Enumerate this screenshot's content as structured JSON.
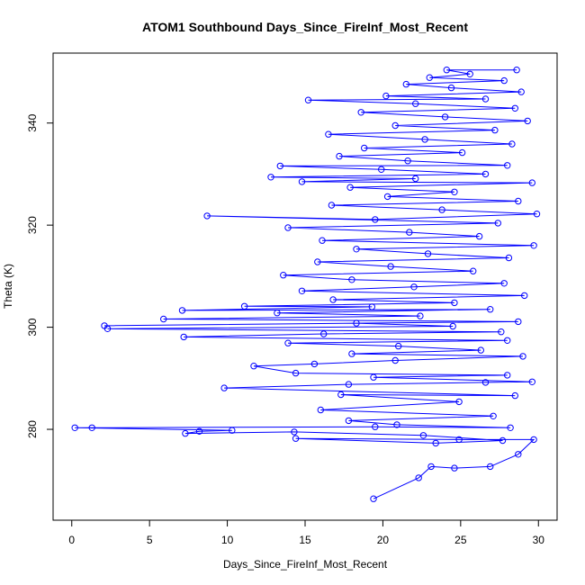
{
  "chart_data": {
    "type": "scatter",
    "title": "ATOM1 Southbound Days_Since_FireInf_Most_Recent",
    "xlabel": "Days_Since_FireInf_Most_Recent",
    "ylabel": "Theta (K)",
    "xlim": [
      -1.2,
      31.2
    ],
    "ylim": [
      262.2,
      353.7
    ],
    "x_ticks": [
      0,
      5,
      10,
      15,
      20,
      25,
      30
    ],
    "y_ticks": [
      280,
      300,
      320,
      340
    ],
    "grid": false,
    "legend": "none",
    "marker": "open-circle",
    "connected": true,
    "series": [
      {
        "color": "#0000ff",
        "points": [
          [
            19.4,
            266.4
          ],
          [
            22.3,
            270.5
          ],
          [
            23.1,
            272.7
          ],
          [
            24.6,
            272.4
          ],
          [
            26.9,
            272.7
          ],
          [
            28.7,
            275.1
          ],
          [
            29.7,
            278.0
          ],
          [
            24.9,
            278.0
          ],
          [
            14.4,
            278.2
          ],
          [
            23.4,
            277.3
          ],
          [
            27.7,
            277.8
          ],
          [
            22.6,
            278.8
          ],
          [
            14.3,
            279.5
          ],
          [
            7.3,
            279.2
          ],
          [
            8.2,
            279.6
          ],
          [
            10.3,
            279.8
          ],
          [
            0.2,
            280.3
          ],
          [
            1.3,
            280.3
          ],
          [
            19.5,
            280.5
          ],
          [
            28.2,
            280.3
          ],
          [
            20.9,
            280.9
          ],
          [
            17.8,
            281.7
          ],
          [
            27.1,
            282.6
          ],
          [
            16.0,
            283.8
          ],
          [
            24.9,
            285.4
          ],
          [
            17.3,
            286.8
          ],
          [
            28.5,
            286.6
          ],
          [
            9.8,
            288.1
          ],
          [
            17.8,
            288.8
          ],
          [
            26.6,
            289.2
          ],
          [
            29.6,
            289.3
          ],
          [
            19.4,
            290.2
          ],
          [
            28.0,
            290.6
          ],
          [
            14.4,
            291.0
          ],
          [
            11.7,
            292.4
          ],
          [
            15.6,
            292.8
          ],
          [
            20.8,
            293.5
          ],
          [
            29.0,
            294.3
          ],
          [
            18.0,
            294.8
          ],
          [
            26.3,
            295.5
          ],
          [
            21.0,
            296.3
          ],
          [
            13.9,
            296.9
          ],
          [
            28.0,
            297.4
          ],
          [
            7.2,
            298.1
          ],
          [
            16.2,
            298.7
          ],
          [
            27.6,
            299.1
          ],
          [
            2.3,
            299.7
          ],
          [
            24.5,
            300.2
          ],
          [
            18.3,
            300.8
          ],
          [
            2.1,
            300.3
          ],
          [
            28.7,
            301.1
          ],
          [
            5.9,
            301.6
          ],
          [
            22.4,
            302.2
          ],
          [
            13.2,
            302.8
          ],
          [
            26.9,
            303.5
          ],
          [
            7.1,
            303.3
          ],
          [
            19.3,
            304.0
          ],
          [
            11.1,
            304.1
          ],
          [
            24.6,
            304.8
          ],
          [
            16.8,
            305.4
          ],
          [
            29.1,
            306.2
          ],
          [
            14.8,
            307.1
          ],
          [
            22.0,
            307.9
          ],
          [
            27.8,
            308.6
          ],
          [
            18.0,
            309.3
          ],
          [
            13.6,
            310.2
          ],
          [
            25.8,
            311.0
          ],
          [
            20.5,
            311.9
          ],
          [
            15.8,
            312.8
          ],
          [
            28.1,
            313.6
          ],
          [
            22.9,
            314.4
          ],
          [
            18.3,
            315.3
          ],
          [
            29.7,
            316.0
          ],
          [
            16.1,
            317.0
          ],
          [
            26.2,
            317.8
          ],
          [
            21.7,
            318.6
          ],
          [
            13.9,
            319.5
          ],
          [
            27.4,
            320.4
          ],
          [
            8.7,
            321.8
          ],
          [
            19.5,
            321.1
          ],
          [
            29.9,
            322.2
          ],
          [
            23.8,
            323.0
          ],
          [
            16.7,
            323.9
          ],
          [
            28.7,
            324.7
          ],
          [
            20.3,
            325.6
          ],
          [
            24.6,
            326.5
          ],
          [
            17.9,
            327.4
          ],
          [
            29.6,
            328.3
          ],
          [
            14.8,
            328.5
          ],
          [
            22.1,
            329.1
          ],
          [
            12.8,
            329.4
          ],
          [
            26.6,
            330.0
          ],
          [
            19.9,
            330.9
          ],
          [
            13.4,
            331.6
          ],
          [
            28.0,
            331.7
          ],
          [
            21.6,
            332.6
          ],
          [
            17.2,
            333.5
          ],
          [
            25.1,
            334.2
          ],
          [
            18.8,
            335.1
          ],
          [
            28.3,
            335.9
          ],
          [
            22.7,
            336.8
          ],
          [
            16.5,
            337.8
          ],
          [
            27.2,
            338.6
          ],
          [
            20.8,
            339.5
          ],
          [
            29.3,
            340.4
          ],
          [
            24.0,
            341.2
          ],
          [
            18.6,
            342.1
          ],
          [
            28.5,
            342.9
          ],
          [
            22.1,
            343.8
          ],
          [
            15.2,
            344.5
          ],
          [
            26.6,
            344.7
          ],
          [
            20.2,
            345.3
          ],
          [
            28.9,
            346.1
          ],
          [
            24.4,
            346.9
          ],
          [
            21.5,
            347.6
          ],
          [
            27.8,
            348.3
          ],
          [
            23.0,
            348.9
          ],
          [
            25.6,
            349.6
          ],
          [
            24.1,
            350.4
          ],
          [
            28.6,
            350.4
          ]
        ]
      }
    ]
  }
}
